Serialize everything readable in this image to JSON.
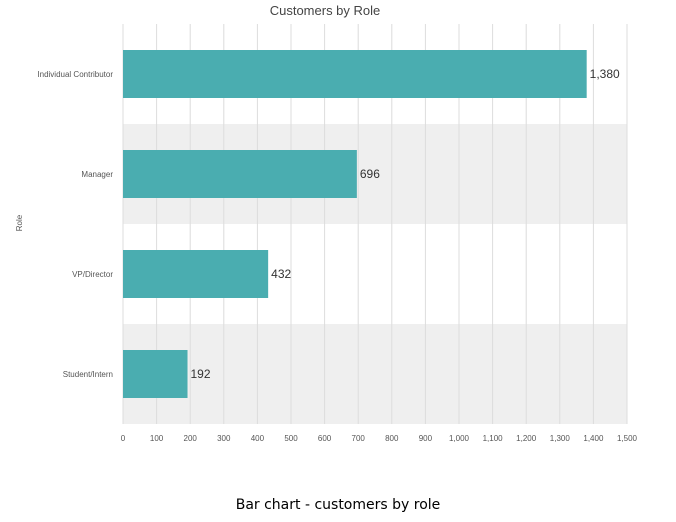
{
  "chart_data": {
    "type": "bar",
    "orientation": "horizontal",
    "title": "Customers by Role",
    "ylabel": "Role",
    "xlabel": "",
    "categories": [
      "Individual Contributor",
      "Manager",
      "VP/Director",
      "Student/Intern"
    ],
    "values": [
      1380,
      696,
      432,
      192
    ],
    "value_labels": [
      "1,380",
      "696",
      "432",
      "192"
    ],
    "xlim": [
      0,
      1500
    ],
    "x_ticks": [
      0,
      100,
      200,
      300,
      400,
      500,
      600,
      700,
      800,
      900,
      1000,
      1100,
      1200,
      1300,
      1400,
      1500
    ],
    "x_tick_labels": [
      "0",
      "100",
      "200",
      "300",
      "400",
      "500",
      "600",
      "700",
      "800",
      "900",
      "1,000",
      "1,100",
      "1,200",
      "1,300",
      "1,400",
      "1,500"
    ],
    "grid": true,
    "alternating_bands": true,
    "bar_color": "#4aadb0",
    "band_color": "#efefef",
    "grid_color": "#dcdcdc"
  },
  "caption": "Bar chart - customers by role"
}
